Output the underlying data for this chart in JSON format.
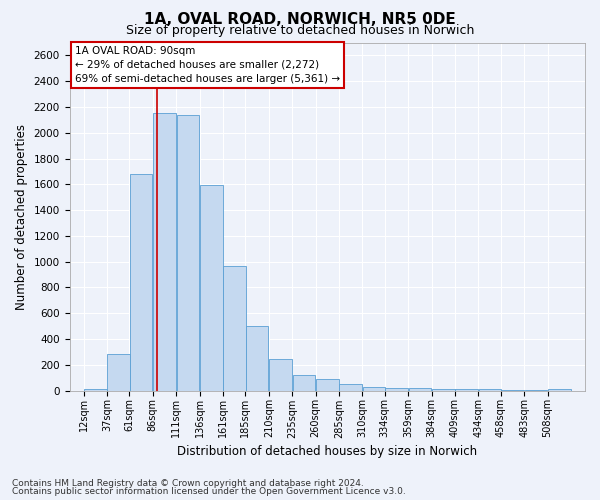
{
  "title": "1A, OVAL ROAD, NORWICH, NR5 0DE",
  "subtitle": "Size of property relative to detached houses in Norwich",
  "xlabel": "Distribution of detached houses by size in Norwich",
  "ylabel": "Number of detached properties",
  "footer_line1": "Contains HM Land Registry data © Crown copyright and database right 2024.",
  "footer_line2": "Contains public sector information licensed under the Open Government Licence v3.0.",
  "annotation_line1": "1A OVAL ROAD: 90sqm",
  "annotation_line2": "← 29% of detached houses are smaller (2,272)",
  "annotation_line3": "69% of semi-detached houses are larger (5,361) →",
  "bar_color": "#c5d9f0",
  "bar_edge_color": "#5a9fd4",
  "red_line_x": 90,
  "categories": [
    "12sqm",
    "37sqm",
    "61sqm",
    "86sqm",
    "111sqm",
    "136sqm",
    "161sqm",
    "185sqm",
    "210sqm",
    "235sqm",
    "260sqm",
    "285sqm",
    "310sqm",
    "334sqm",
    "359sqm",
    "384sqm",
    "409sqm",
    "434sqm",
    "458sqm",
    "483sqm",
    "508sqm"
  ],
  "bin_left_edges": [
    12,
    37,
    61,
    86,
    111,
    136,
    161,
    185,
    210,
    235,
    260,
    285,
    310,
    334,
    359,
    384,
    409,
    434,
    458,
    483,
    508
  ],
  "bin_width": 25,
  "values": [
    10,
    280,
    1680,
    2150,
    2140,
    1595,
    970,
    500,
    245,
    120,
    90,
    50,
    30,
    20,
    18,
    15,
    12,
    10,
    7,
    4,
    12
  ],
  "ylim": [
    0,
    2700
  ],
  "yticks": [
    0,
    200,
    400,
    600,
    800,
    1000,
    1200,
    1400,
    1600,
    1800,
    2000,
    2200,
    2400,
    2600
  ],
  "background_color": "#eef2fa",
  "grid_color": "#ffffff",
  "annotation_box_color": "#ffffff",
  "annotation_box_edge": "#cc0000",
  "red_line_color": "#cc0000",
  "title_fontsize": 11,
  "subtitle_fontsize": 9,
  "axis_label_fontsize": 8.5,
  "tick_fontsize": 7.5,
  "footer_fontsize": 6.5
}
